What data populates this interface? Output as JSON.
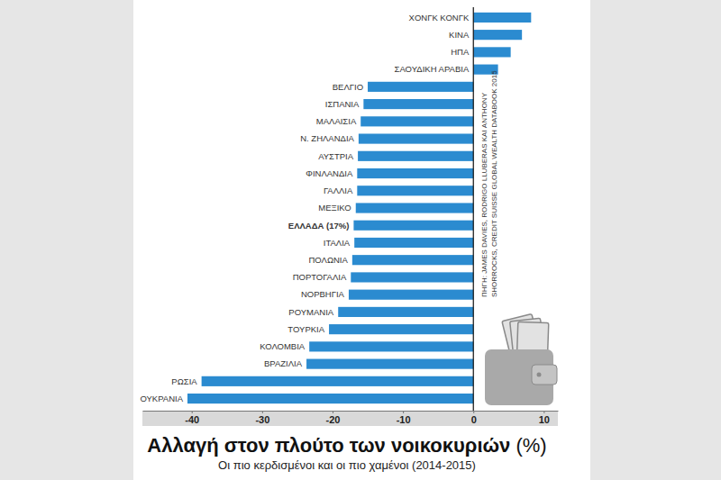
{
  "chart_data": {
    "type": "bar",
    "orientation": "horizontal",
    "title": "Αλλαγή στον πλούτο των νοικοκυριών (%)",
    "subtitle": "Οι πιο κερδισμένοι και οι πιο χαμένοι (2014-2015)",
    "annotations": [
      "ΠΗΓΗ: JAMES DAVIES, RODRIGO LLUBERAS ΚΑΙ ANTHONY",
      "SHORROCKS, CREDIT SUISSE GLOBAL WEALTH DATABOOK 2015"
    ],
    "categories": [
      "ΧΟΝΓΚ ΚΟΝΓΚ",
      "ΚΙΝΑ",
      "ΗΠΑ",
      "ΣΑΟΥΔΙΚΗ ΑΡΑΒΙΑ",
      "ΒΕΛΓΙΟ",
      "ΙΣΠΑΝΙΑ",
      "ΜΑΛΑΙΣΙΑ",
      "Ν. ΖΗΛΑΝΔΙΑ",
      "ΑΥΣΤΡΙΑ",
      "ΦΙΝΛΑΝΔΙΑ",
      "ΓΑΛΛΙΑ",
      "ΜΕΞΙΚΟ",
      "ΕΛΛΑΔΑ (17%)",
      "ΙΤΑΛΙΑ",
      "ΠΟΛΩΝΙΑ",
      "ΠΟΡΤΟΓΑΛΙΑ",
      "ΝΟΡΒΗΓΙΑ",
      "ΡΟΥΜΑΝΙΑ",
      "ΤΟΥΡΚΙΑ",
      "ΚΟΛΟΜΒΙΑ",
      "ΒΡΑΖΙΛΙΑ",
      "ΡΩΣΙΑ",
      "ΟΥΚΡΑΝΙΑ"
    ],
    "values": [
      8.2,
      6.9,
      5.3,
      3.5,
      -15.0,
      -15.6,
      -16.0,
      -16.3,
      -16.4,
      -16.5,
      -16.5,
      -16.7,
      -17.0,
      -16.9,
      -17.2,
      -17.4,
      -17.7,
      -19.2,
      -20.5,
      -23.3,
      -23.7,
      -38.6,
      -40.6
    ],
    "color": "#2b8bd0",
    "xlim": [
      -47,
      12
    ],
    "xticks": [
      -40,
      -30,
      -20,
      -10,
      0,
      10
    ],
    "grid": false
  }
}
